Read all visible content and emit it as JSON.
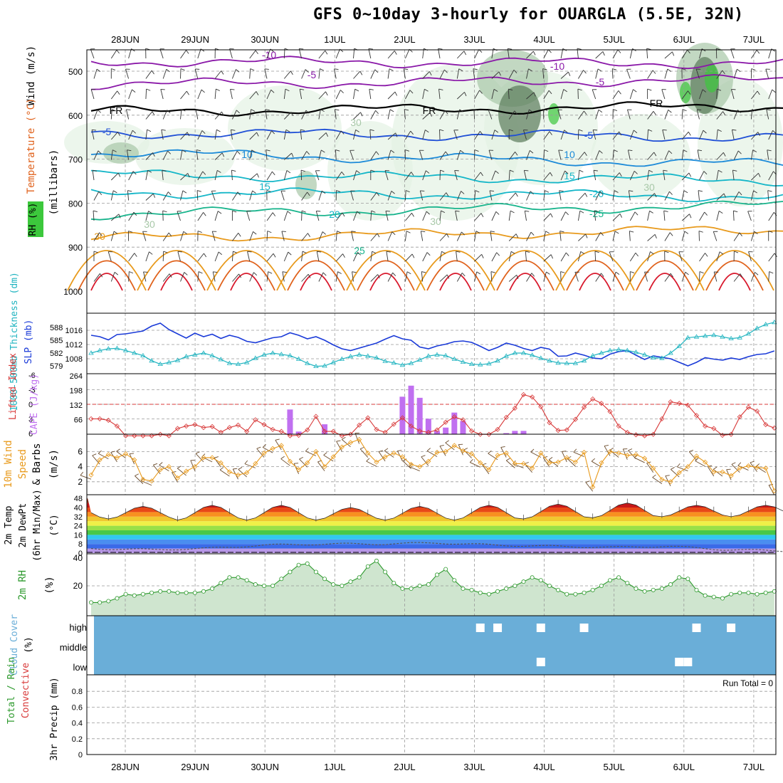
{
  "title": "GFS 0~10day 3-hourly for OUARGLA (5.5E, 32N)",
  "dates": [
    "28JUN",
    "29JUN",
    "30JUN",
    "1JUL",
    "2JUL",
    "3JUL",
    "4JUL",
    "5JUL",
    "6JUL",
    "7JUL"
  ],
  "colors": {
    "temp_purple": "#8a18a8",
    "temp_blue": "#1f4fd6",
    "temp_midblue": "#1c8ad8",
    "temp_cyan": "#14b6c8",
    "temp_teal": "#18b48c",
    "temp_orange": "#e89a1c",
    "temp_dkorange": "#e0621c",
    "temp_red": "#d8182c",
    "freezing": "#000000",
    "rh_light": "#e4f2e4",
    "rh_mid": "#a8c8a8",
    "rh_dark": "#5a7a5a",
    "rh_green": "#3cc83c",
    "slp": "#1a3ad8",
    "thickness": "#20b4c0",
    "lifted_index": "#d83838",
    "cape": "#c070f0",
    "wind_speed": "#e89a1c",
    "wind_barb": "#6a4a2a",
    "rh2m": "#2e9a2e",
    "rh2m_fill": "#cfe5cf",
    "cloud": "#6aaed8",
    "clear": "#ffffff",
    "precip_total": "#2e9a2e",
    "precip_conv": "#d83838"
  },
  "panels": {
    "upper": {
      "labels": {
        "wind": "Wind (m/s)",
        "temperature": "Temperature (°C)",
        "rh": "RH (%)",
        "millibars": "(millibars)"
      },
      "contour_labels": [
        "-10",
        "-5",
        "FR",
        "-5",
        "10",
        "15",
        "20",
        "25",
        "30",
        "-10",
        "-5",
        "FR",
        "-5",
        "10",
        "15",
        "-20",
        "-25",
        "30",
        "30",
        "30",
        "30",
        "FR"
      ]
    },
    "slp": {
      "labels": {
        "thickness": "1000-500mb Thickness (dm)",
        "slp": "SLP (mb)"
      }
    },
    "li": {
      "labels": {
        "li": "Lifted Index",
        "cape": "CAPE (J/kg)"
      }
    },
    "wind10": {
      "labels": {
        "a": "10m Wind",
        "b": "Speed",
        "c": "& Barbs",
        "unit": "(m/s)"
      }
    },
    "temp2m": {
      "labels": {
        "a": "2m Temp",
        "b": "2m DewPt",
        "c": "(6hr Min/Max)",
        "unit": "(°C)"
      }
    },
    "rh2m": {
      "labels": {
        "a": "2m RH",
        "unit": "(%)"
      }
    },
    "cloud": {
      "labels": {
        "a": "Cloud Cover",
        "unit": "(%)",
        "high": "high",
        "middle": "middle",
        "low": "low"
      }
    },
    "precip": {
      "labels": {
        "a": "Total / Rain",
        "b": "Convective",
        "c": "3hr Precip (mm)"
      },
      "run_total": "Run Total = 0"
    }
  },
  "chart_data": [
    {
      "type": "contour",
      "panel": "upper-air",
      "y_axis": {
        "label": "millibars",
        "ticks": [
          500,
          600,
          700,
          800,
          900,
          1000
        ],
        "range": [
          450,
          1000
        ]
      },
      "temperature_isotherms_c": [
        -10,
        -5,
        0,
        5,
        10,
        15,
        20,
        25,
        30
      ],
      "isotherm_pressure_start_mb": {
        "-10": 478,
        "-5": 530,
        "0": 592,
        "5": 640,
        "10": 685,
        "15": 735,
        "20": 775,
        "25": 825,
        "30": 880
      },
      "isotherm_pressure_end_mb": {
        "-10": 482,
        "-5": 520,
        "0": 580,
        "5": 650,
        "10": 712,
        "15": 748,
        "20": 785,
        "25": 805,
        "30": 860
      }
    },
    {
      "type": "line",
      "panel": "slp-thickness",
      "x_steps": 80,
      "series": [
        {
          "name": "SLP",
          "axis": "right-inner",
          "ticks": [
            1008,
            1012,
            1016
          ],
          "values": [
            1014.6,
            1014.2,
            1013.3,
            1014.8,
            1015.0,
            1015.4,
            1015.8,
            1017.2,
            1018.0,
            1016.2,
            1015.0,
            1013.8,
            1015.2,
            1014.2,
            1014.9,
            1013.7,
            1014.6,
            1014.0,
            1012.9,
            1012.5,
            1013.2,
            1013.9,
            1014.2,
            1015.3,
            1014.6,
            1013.6,
            1014.2,
            1013.2,
            1011.9,
            1010.8,
            1010.3,
            1011.0,
            1011.7,
            1012.4,
            1013.5,
            1014.5,
            1013.6,
            1013.2,
            1011.3,
            1010.8,
            1011.6,
            1012.1,
            1012.8,
            1013.0,
            1012.6,
            1011.5,
            1010.3,
            1011.2,
            1012.4,
            1011.8,
            1010.9,
            1010.3,
            1011.2,
            1010.7,
            1008.7,
            1008.8,
            1009.6,
            1009.0,
            1008.2,
            1008.0,
            1009.3,
            1010.0,
            1010.3,
            1009.0,
            1007.8,
            1008.8,
            1008.4,
            1008.0,
            1007.0,
            1006.0,
            1007.0,
            1008.3,
            1007.9,
            1007.6,
            1008.2,
            1007.8,
            1008.6,
            1009.2,
            1009.4,
            1010.2
          ]
        },
        {
          "name": "Thickness",
          "axis": "left-inner",
          "ticks": [
            579,
            582,
            585,
            588
          ],
          "values": [
            582.0,
            582.6,
            583.0,
            583.1,
            582.6,
            582.0,
            581.4,
            580.2,
            579.4,
            579.8,
            580.3,
            581.2,
            581.6,
            582.0,
            581.4,
            580.5,
            579.6,
            579.4,
            579.8,
            580.8,
            581.6,
            582.0,
            581.7,
            581.4,
            580.6,
            579.6,
            578.9,
            579.0,
            579.8,
            580.6,
            581.2,
            581.6,
            581.3,
            580.9,
            580.1,
            579.7,
            579.2,
            579.6,
            580.4,
            581.3,
            581.6,
            581.4,
            580.6,
            579.9,
            579.4,
            579.3,
            579.5,
            580.2,
            581.3,
            582.0,
            582.0,
            581.5,
            580.8,
            580.2,
            579.7,
            579.6,
            579.6,
            580.2,
            581.4,
            582.0,
            582.6,
            582.8,
            582.6,
            582.2,
            581.6,
            580.9,
            580.8,
            582.0,
            583.6,
            585.6,
            585.8,
            586.0,
            586.2,
            585.8,
            585.4,
            585.6,
            586.5,
            587.8,
            588.7,
            589.2
          ]
        }
      ]
    },
    {
      "type": "line+bar",
      "panel": "lifted-index-cape",
      "x_steps": 80,
      "series": [
        {
          "name": "Lifted Index",
          "axis": "left",
          "ticks": [
            -6,
            -3,
            0,
            3,
            6
          ],
          "range": [
            6,
            -6
          ],
          "values": [
            3.0,
            3.0,
            3.3,
            4.5,
            6.5,
            6.5,
            6.5,
            6.5,
            6.2,
            6.5,
            5.0,
            4.5,
            4.2,
            4.8,
            4.6,
            5.8,
            4.8,
            4.3,
            5.6,
            3.2,
            4.2,
            5.2,
            5.6,
            6.5,
            6.4,
            5.3,
            2.5,
            5.6,
            5.6,
            6.5,
            6.2,
            4.3,
            2.8,
            5.2,
            5.8,
            4.1,
            2.8,
            4.5,
            5.5,
            5.8,
            5.3,
            3.7,
            2.6,
            3.2,
            5.5,
            6.2,
            6.2,
            5.2,
            2.7,
            0.8,
            -2.0,
            -1.5,
            0.5,
            3.8,
            5.4,
            5.3,
            3.1,
            0.6,
            -1.1,
            -0.2,
            1.5,
            4.5,
            5.8,
            6.3,
            6.5,
            6.2,
            3.0,
            -0.5,
            -0.2,
            0.2,
            2.3,
            4.5,
            5.0,
            6.4,
            6.2,
            2.6,
            0.6,
            1.4,
            4.2,
            4.9
          ]
        },
        {
          "name": "CAPE",
          "axis": "right",
          "ticks": [
            66,
            132,
            198,
            264
          ],
          "range": [
            0,
            264
          ],
          "bars": [
            [
              23,
              112
            ],
            [
              24,
              12
            ],
            [
              27,
              45
            ],
            [
              36,
              170
            ],
            [
              37,
              220
            ],
            [
              38,
              165
            ],
            [
              39,
              70
            ],
            [
              40,
              15
            ],
            [
              41,
              30
            ],
            [
              42,
              98
            ],
            [
              43,
              60
            ],
            [
              48,
              5
            ],
            [
              49,
              15
            ],
            [
              50,
              15
            ]
          ]
        }
      ]
    },
    {
      "type": "line",
      "panel": "10m-wind",
      "x_steps": 80,
      "series": [
        {
          "name": "Speed",
          "axis": "left",
          "ticks": [
            2,
            4,
            6
          ],
          "values": [
            2.9,
            4.9,
            5.6,
            5.2,
            5.7,
            4.9,
            2.3,
            2.1,
            3.6,
            4.0,
            2.5,
            3.4,
            4.0,
            5.2,
            5.2,
            4.5,
            3.3,
            2.9,
            3.2,
            4.4,
            5.8,
            6.4,
            6.8,
            4.7,
            3.6,
            4.5,
            6.0,
            4.0,
            5.3,
            6.6,
            7.2,
            7.6,
            5.8,
            4.6,
            5.3,
            5.8,
            5.3,
            4.3,
            4.0,
            4.7,
            5.9,
            6.0,
            6.8,
            6.1,
            5.7,
            4.5,
            3.6,
            5.5,
            5.8,
            4.4,
            4.4,
            3.8,
            5.8,
            4.5,
            4.6,
            5.2,
            4.6,
            5.9,
            1.3,
            4.5,
            6.0,
            5.8,
            5.5,
            5.6,
            5.1,
            3.8,
            2.3,
            2.0,
            3.2,
            4.0,
            5.4,
            4.6,
            3.3,
            3.3,
            2.8,
            3.8,
            4.1,
            3.9,
            3.8,
            0.8
          ]
        }
      ]
    },
    {
      "type": "area",
      "panel": "2m-temperature",
      "x_steps": 80,
      "y_ticks": [
        0,
        8,
        16,
        24,
        32,
        40,
        48
      ],
      "color_bands_c": [
        0,
        4,
        8,
        12,
        16,
        20,
        24,
        28,
        32,
        36,
        40,
        44,
        48
      ],
      "band_colors": [
        "#b898e8",
        "#3a6ae8",
        "#4a8ef0",
        "#32c8f0",
        "#48c848",
        "#9ae048",
        "#f0f048",
        "#f0c830",
        "#f89020",
        "#e84818",
        "#c81818",
        "#8a3018"
      ],
      "temp_max_c": [
        41,
        42,
        42,
        40,
        41,
        42,
        43,
        44,
        42
      ],
      "temp_min_c": [
        30,
        29,
        29,
        29,
        29,
        29,
        30,
        31,
        32
      ],
      "dewpoint_c": [
        4,
        3,
        4,
        7,
        8,
        8,
        9,
        7,
        6,
        5,
        6,
        3,
        2
      ]
    },
    {
      "type": "area",
      "panel": "2m-rh",
      "x_steps": 80,
      "y_ticks": [
        20,
        40
      ],
      "values": [
        8,
        8,
        9,
        11,
        14,
        13,
        14,
        15,
        16,
        16,
        15,
        15,
        15,
        16,
        18,
        22,
        26,
        26,
        24,
        21,
        20,
        20,
        25,
        30,
        35,
        36,
        30,
        25,
        21,
        20,
        23,
        26,
        34,
        38,
        30,
        22,
        18,
        18,
        20,
        21,
        28,
        32,
        24,
        18,
        17,
        15,
        14,
        16,
        18,
        20,
        23,
        26,
        24,
        20,
        17,
        14,
        14,
        15,
        17,
        20,
        24,
        26,
        22,
        18,
        16,
        17,
        18,
        21,
        26,
        25,
        17,
        13,
        12,
        11,
        14,
        15,
        15,
        14,
        15,
        16
      ]
    },
    {
      "type": "heatmap",
      "panel": "cloud-cover",
      "levels": [
        "high",
        "middle",
        "low"
      ],
      "clear_cells": [
        [
          45,
          "high"
        ],
        [
          47,
          "high"
        ],
        [
          52,
          "high"
        ],
        [
          57,
          "high"
        ],
        [
          70,
          "high"
        ],
        [
          74,
          "high"
        ],
        [
          52,
          "low"
        ],
        [
          68,
          "low"
        ],
        [
          69,
          "low"
        ]
      ]
    },
    {
      "type": "bar",
      "panel": "3hr-precip",
      "y_ticks": [
        0,
        0.2,
        0.4,
        0.6,
        0.8
      ],
      "range": [
        0,
        1
      ],
      "values": []
    }
  ]
}
